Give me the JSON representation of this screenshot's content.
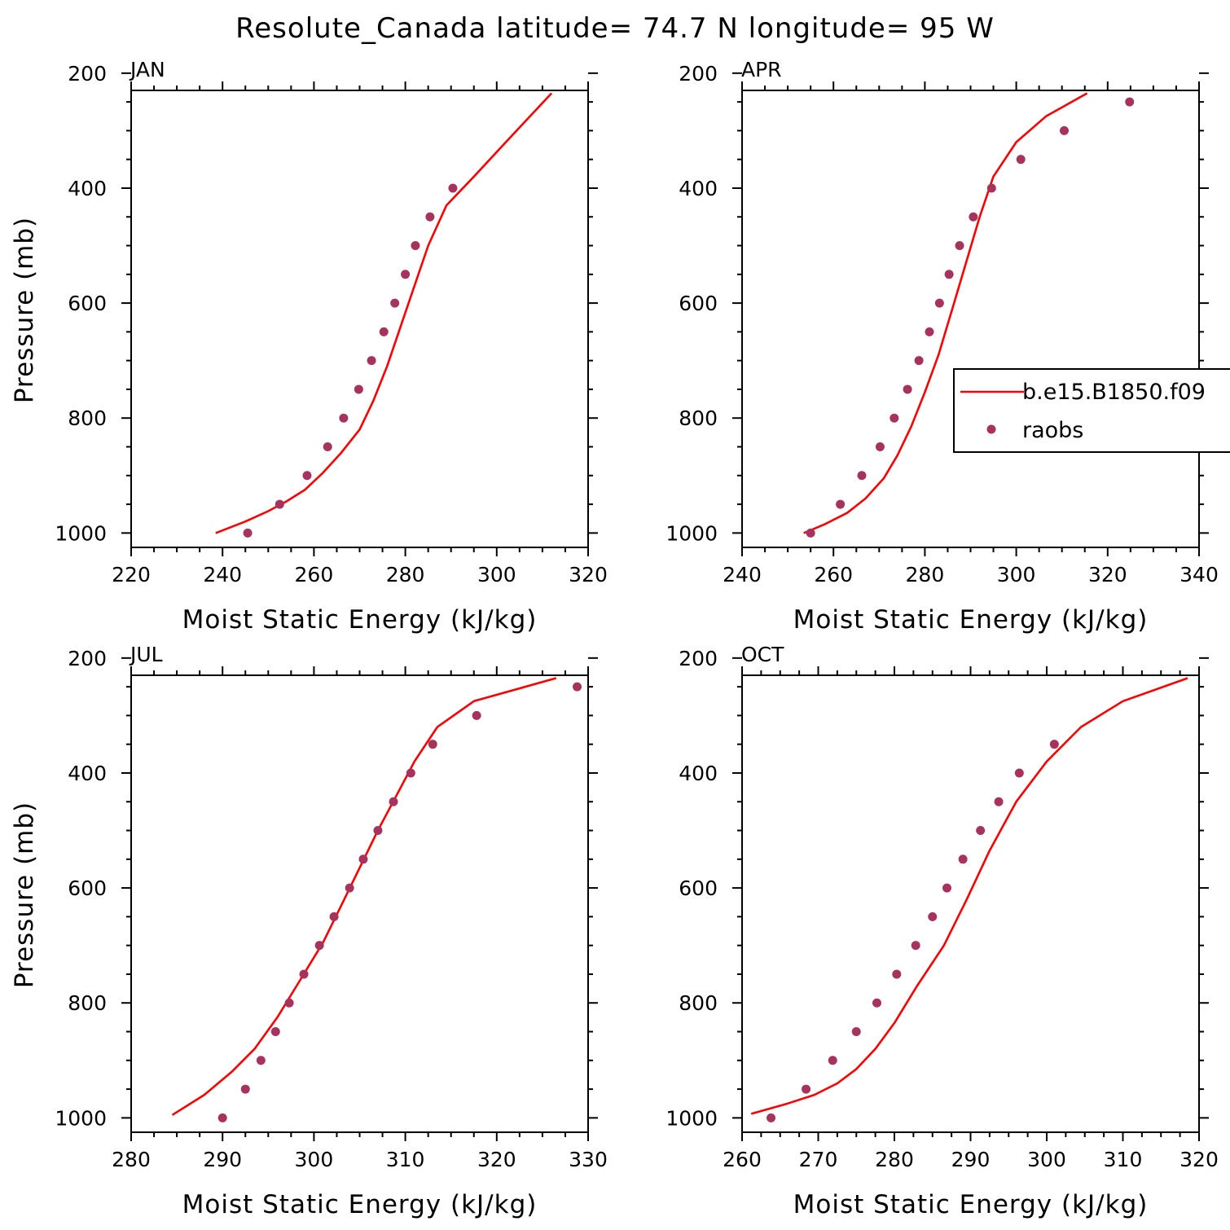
{
  "figure": {
    "title": "Resolute_Canada  latitude= 74.7 N longitude= 95 W"
  },
  "colors": {
    "model_line": "#ff0000",
    "raobs_marker": "#a8325e",
    "axis": "#000000"
  },
  "chart_data": [
    {
      "type": "line",
      "panel_label": "JAN",
      "xlabel": "Moist Static Energy (kJ/kg)",
      "ylabel": "Pressure (mb)",
      "xlim": [
        220,
        320
      ],
      "ylim": [
        1000,
        200
      ],
      "y_inverted": true,
      "x_ticks": [
        "220",
        "240",
        "260",
        "280",
        "300",
        "320"
      ],
      "y_ticks": [
        "200",
        "400",
        "600",
        "800",
        "1000"
      ],
      "series": [
        {
          "name": "b.e15.B1850.f09",
          "mark": "line",
          "x": [
            238.5,
            245,
            250,
            254,
            258,
            262,
            266,
            270,
            273,
            276,
            279,
            282,
            285,
            289,
            295,
            302,
            312
          ],
          "y": [
            1000,
            980,
            962,
            945,
            925,
            895,
            860,
            820,
            770,
            710,
            640,
            570,
            500,
            430,
            380,
            320,
            235
          ]
        },
        {
          "name": "raobs",
          "mark": "scatter",
          "x": [
            245.5,
            252.5,
            258.5,
            263,
            266.5,
            269.8,
            272.6,
            275.3,
            277.7,
            280,
            282.2,
            285.4,
            290.4
          ],
          "y": [
            1000,
            950,
            900,
            850,
            800,
            750,
            700,
            650,
            600,
            550,
            500,
            450,
            400
          ]
        }
      ]
    },
    {
      "type": "line",
      "panel_label": "APR",
      "xlabel": "Moist Static Energy (kJ/kg)",
      "ylabel": "",
      "xlim": [
        240,
        340
      ],
      "ylim": [
        1000,
        200
      ],
      "y_inverted": true,
      "x_ticks": [
        "240",
        "260",
        "280",
        "300",
        "320",
        "340"
      ],
      "y_ticks": [
        "200",
        "400",
        "600",
        "800",
        "1000"
      ],
      "legend": {
        "position": "right",
        "entries": [
          "b.e15.B1850.f09",
          "raobs"
        ]
      },
      "series": [
        {
          "name": "b.e15.B1850.f09",
          "mark": "line",
          "x": [
            253.5,
            258,
            263,
            267,
            271,
            274,
            277,
            280,
            283,
            286,
            289,
            292,
            295,
            300,
            306.5,
            315.5
          ],
          "y": [
            1000,
            985,
            965,
            940,
            905,
            865,
            815,
            755,
            690,
            610,
            530,
            450,
            380,
            320,
            275,
            235
          ]
        },
        {
          "name": "raobs",
          "mark": "scatter",
          "x": [
            255,
            261.5,
            266.2,
            270.2,
            273.3,
            276.2,
            278.7,
            281,
            283.2,
            285.3,
            287.6,
            290.6,
            294.6,
            301,
            310.5,
            324.8
          ],
          "y": [
            1000,
            950,
            900,
            850,
            800,
            750,
            700,
            650,
            600,
            550,
            500,
            450,
            400,
            350,
            300,
            250
          ]
        }
      ]
    },
    {
      "type": "line",
      "panel_label": "JUL",
      "xlabel": "Moist Static Energy (kJ/kg)",
      "ylabel": "Pressure (mb)",
      "xlim": [
        280,
        330
      ],
      "ylim": [
        1000,
        200
      ],
      "y_inverted": true,
      "x_ticks": [
        "280",
        "290",
        "300",
        "310",
        "320",
        "330"
      ],
      "y_ticks": [
        "200",
        "400",
        "600",
        "800",
        "1000"
      ],
      "series": [
        {
          "name": "b.e15.B1850.f09",
          "mark": "line",
          "x": [
            284.5,
            288,
            291,
            293.5,
            296,
            298.5,
            301,
            303,
            305,
            307,
            309,
            311,
            313.5,
            317.5,
            326.5
          ],
          "y": [
            995,
            960,
            920,
            880,
            825,
            760,
            695,
            630,
            565,
            500,
            440,
            380,
            320,
            275,
            235
          ]
        },
        {
          "name": "raobs",
          "mark": "scatter",
          "x": [
            290,
            292.5,
            294.2,
            295.8,
            297.3,
            298.9,
            300.6,
            302.2,
            303.9,
            305.4,
            307,
            308.7,
            310.6,
            313,
            317.8,
            328.8
          ],
          "y": [
            1000,
            950,
            900,
            850,
            800,
            750,
            700,
            650,
            600,
            550,
            500,
            450,
            400,
            350,
            300,
            250
          ]
        }
      ]
    },
    {
      "type": "line",
      "panel_label": "OCT",
      "xlabel": "Moist Static Energy (kJ/kg)",
      "ylabel": "",
      "xlim": [
        260,
        320
      ],
      "ylim": [
        1000,
        200
      ],
      "y_inverted": true,
      "x_ticks": [
        "260",
        "270",
        "280",
        "290",
        "300",
        "310",
        "320"
      ],
      "y_ticks": [
        "200",
        "400",
        "600",
        "800",
        "1000"
      ],
      "series": [
        {
          "name": "b.e15.B1850.f09",
          "mark": "line",
          "x": [
            261.2,
            266,
            269.5,
            272.5,
            275,
            277.5,
            280,
            283,
            286.5,
            289.5,
            292.5,
            296,
            300,
            304.5,
            310,
            318.5
          ],
          "y": [
            993,
            975,
            960,
            940,
            915,
            880,
            835,
            770,
            700,
            620,
            535,
            450,
            380,
            320,
            275,
            235
          ]
        },
        {
          "name": "raobs",
          "mark": "scatter",
          "x": [
            263.8,
            268.4,
            271.9,
            275,
            277.7,
            280.3,
            282.8,
            285,
            286.9,
            289,
            291.3,
            293.7,
            296.4,
            301
          ],
          "y": [
            1000,
            950,
            900,
            850,
            800,
            750,
            700,
            650,
            600,
            550,
            500,
            450,
            400,
            350
          ]
        }
      ]
    }
  ]
}
